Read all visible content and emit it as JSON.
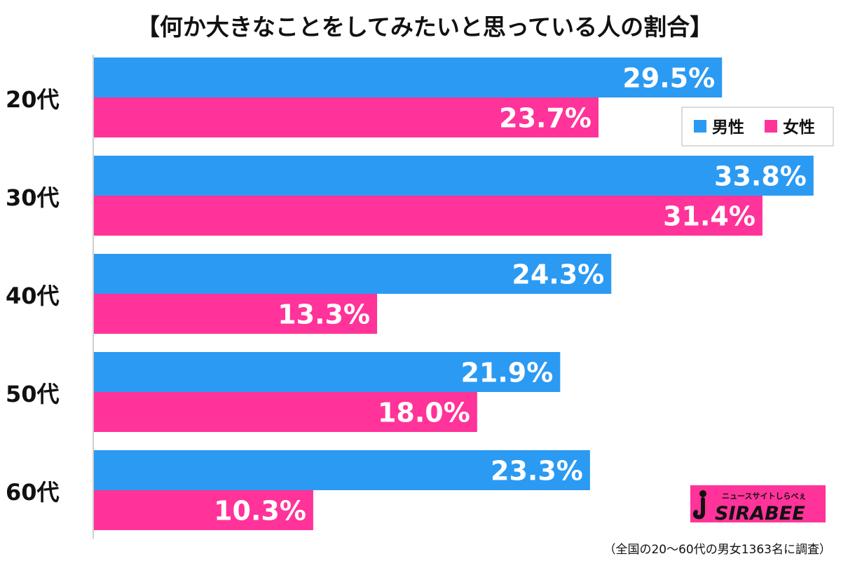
{
  "chart_data": {
    "type": "bar",
    "orientation": "horizontal",
    "title": "【何か大きなことをしてみたいと思っている人の割合】",
    "categories": [
      "20代",
      "30代",
      "40代",
      "50代",
      "60代"
    ],
    "series": [
      {
        "name": "男性",
        "color": "#2b9af3",
        "values": [
          29.5,
          33.8,
          24.3,
          21.9,
          23.3
        ]
      },
      {
        "name": "女性",
        "color": "#ff3399",
        "values": [
          23.7,
          31.4,
          13.3,
          18.0,
          10.3
        ]
      }
    ],
    "value_labels": {
      "男性": [
        "29.5%",
        "33.8%",
        "24.3%",
        "21.9%",
        "23.3%"
      ],
      "女性": [
        "23.7%",
        "31.4%",
        "13.3%",
        "18.0%",
        "10.3%"
      ]
    },
    "xlim": [
      0,
      35
    ],
    "grid": false,
    "legend_position": "top-right",
    "footnote": "（全国の20～60代の男女1363名に調査）"
  },
  "logo": {
    "sub_text": "ニュースサイトしらべぇ",
    "main_text": "SIRABEE",
    "color": "#ff3399"
  }
}
